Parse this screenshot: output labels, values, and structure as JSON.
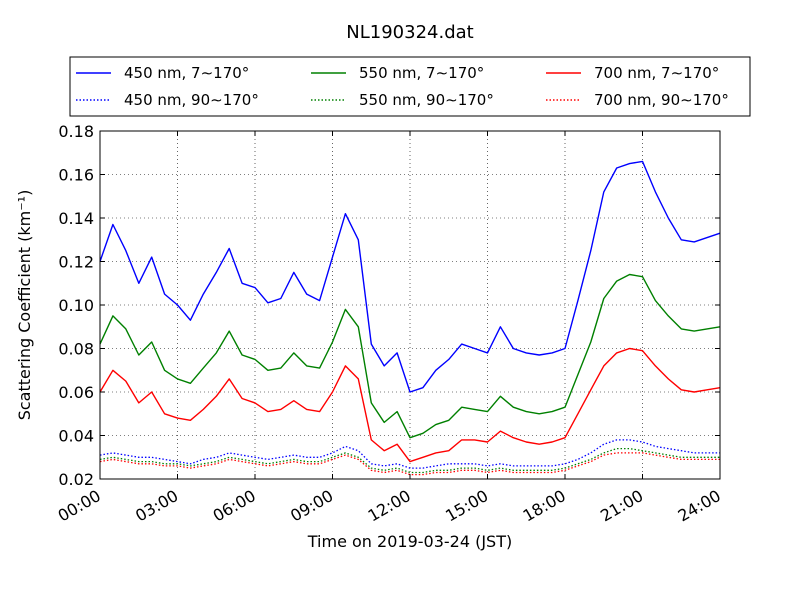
{
  "chart_data": {
    "type": "line",
    "title": "NL190324.dat",
    "xlabel": "Time on 2019-03-24 (JST)",
    "ylabel": "Scattering Coefficient (km⁻¹)",
    "xlim": [
      "00:00",
      "24:00"
    ],
    "ylim": [
      0.02,
      0.18
    ],
    "grid": true,
    "legend_position": "top, above plot, 3 columns",
    "xticks": [
      "00:00",
      "03:00",
      "06:00",
      "09:00",
      "12:00",
      "15:00",
      "18:00",
      "21:00",
      "24:00"
    ],
    "yticks": [
      "0.02",
      "0.04",
      "0.06",
      "0.08",
      "0.10",
      "0.12",
      "0.14",
      "0.16",
      "0.18"
    ],
    "x_hours": [
      0,
      0.5,
      1,
      1.5,
      2,
      2.5,
      3,
      3.5,
      4,
      4.5,
      5,
      5.5,
      6,
      6.5,
      7,
      7.5,
      8,
      8.5,
      9,
      9.5,
      10,
      10.5,
      11,
      11.5,
      12,
      12.5,
      13,
      13.5,
      14,
      14.5,
      15,
      15.5,
      16,
      16.5,
      17,
      17.5,
      18,
      18.5,
      19,
      19.5,
      20,
      20.5,
      21,
      21.5,
      22,
      22.5,
      23,
      23.5,
      24
    ],
    "series": [
      {
        "name": "450 nm, 7∼170°",
        "color": "#0000ff",
        "style": "solid",
        "values": [
          0.12,
          0.137,
          0.125,
          0.11,
          0.122,
          0.105,
          0.1,
          0.093,
          0.105,
          0.115,
          0.126,
          0.11,
          0.108,
          0.101,
          0.103,
          0.115,
          0.105,
          0.102,
          0.122,
          0.142,
          0.13,
          0.082,
          0.072,
          0.078,
          0.06,
          0.062,
          0.07,
          0.075,
          0.082,
          0.08,
          0.078,
          0.09,
          0.08,
          0.078,
          0.077,
          0.078,
          0.08,
          0.102,
          0.125,
          0.152,
          0.163,
          0.165,
          0.166,
          0.152,
          0.14,
          0.13,
          0.129,
          0.131,
          0.133
        ]
      },
      {
        "name": "450 nm, 90∼170°",
        "color": "#0000ff",
        "style": "dotted",
        "values": [
          0.031,
          0.032,
          0.031,
          0.03,
          0.03,
          0.029,
          0.028,
          0.027,
          0.029,
          0.03,
          0.032,
          0.031,
          0.03,
          0.029,
          0.03,
          0.031,
          0.03,
          0.03,
          0.032,
          0.035,
          0.033,
          0.027,
          0.026,
          0.027,
          0.025,
          0.025,
          0.026,
          0.027,
          0.027,
          0.027,
          0.026,
          0.027,
          0.026,
          0.026,
          0.026,
          0.026,
          0.027,
          0.029,
          0.032,
          0.036,
          0.038,
          0.038,
          0.037,
          0.035,
          0.034,
          0.033,
          0.032,
          0.032,
          0.032
        ]
      },
      {
        "name": "550 nm, 7∼170°",
        "color": "#008000",
        "style": "solid",
        "values": [
          0.082,
          0.095,
          0.089,
          0.077,
          0.083,
          0.07,
          0.066,
          0.064,
          0.071,
          0.078,
          0.088,
          0.077,
          0.075,
          0.07,
          0.071,
          0.078,
          0.072,
          0.071,
          0.083,
          0.098,
          0.09,
          0.055,
          0.046,
          0.051,
          0.039,
          0.041,
          0.045,
          0.047,
          0.053,
          0.052,
          0.051,
          0.058,
          0.053,
          0.051,
          0.05,
          0.051,
          0.053,
          0.068,
          0.083,
          0.103,
          0.111,
          0.114,
          0.113,
          0.102,
          0.095,
          0.089,
          0.088,
          0.089,
          0.09
        ]
      },
      {
        "name": "550 nm, 90∼170°",
        "color": "#008000",
        "style": "dotted",
        "values": [
          0.029,
          0.03,
          0.029,
          0.028,
          0.028,
          0.027,
          0.027,
          0.026,
          0.027,
          0.028,
          0.03,
          0.029,
          0.028,
          0.027,
          0.028,
          0.029,
          0.028,
          0.028,
          0.03,
          0.032,
          0.03,
          0.025,
          0.024,
          0.025,
          0.023,
          0.023,
          0.024,
          0.024,
          0.025,
          0.025,
          0.024,
          0.025,
          0.024,
          0.024,
          0.024,
          0.024,
          0.025,
          0.027,
          0.029,
          0.032,
          0.034,
          0.034,
          0.033,
          0.032,
          0.031,
          0.03,
          0.03,
          0.03,
          0.03
        ]
      },
      {
        "name": "700 nm, 7∼170°",
        "color": "#ff0000",
        "style": "solid",
        "values": [
          0.06,
          0.07,
          0.065,
          0.055,
          0.06,
          0.05,
          0.048,
          0.047,
          0.052,
          0.058,
          0.066,
          0.057,
          0.055,
          0.051,
          0.052,
          0.056,
          0.052,
          0.051,
          0.06,
          0.072,
          0.066,
          0.038,
          0.033,
          0.036,
          0.028,
          0.03,
          0.032,
          0.033,
          0.038,
          0.038,
          0.037,
          0.042,
          0.039,
          0.037,
          0.036,
          0.037,
          0.039,
          0.05,
          0.061,
          0.072,
          0.078,
          0.08,
          0.079,
          0.072,
          0.066,
          0.061,
          0.06,
          0.061,
          0.062
        ]
      },
      {
        "name": "700 nm, 90∼170°",
        "color": "#ff0000",
        "style": "dotted",
        "values": [
          0.028,
          0.029,
          0.028,
          0.027,
          0.027,
          0.026,
          0.026,
          0.025,
          0.026,
          0.027,
          0.029,
          0.028,
          0.027,
          0.026,
          0.027,
          0.028,
          0.027,
          0.027,
          0.029,
          0.031,
          0.029,
          0.024,
          0.023,
          0.024,
          0.022,
          0.022,
          0.023,
          0.023,
          0.024,
          0.024,
          0.023,
          0.024,
          0.023,
          0.023,
          0.023,
          0.023,
          0.024,
          0.026,
          0.028,
          0.031,
          0.032,
          0.032,
          0.032,
          0.031,
          0.03,
          0.029,
          0.029,
          0.029,
          0.029
        ]
      }
    ]
  }
}
